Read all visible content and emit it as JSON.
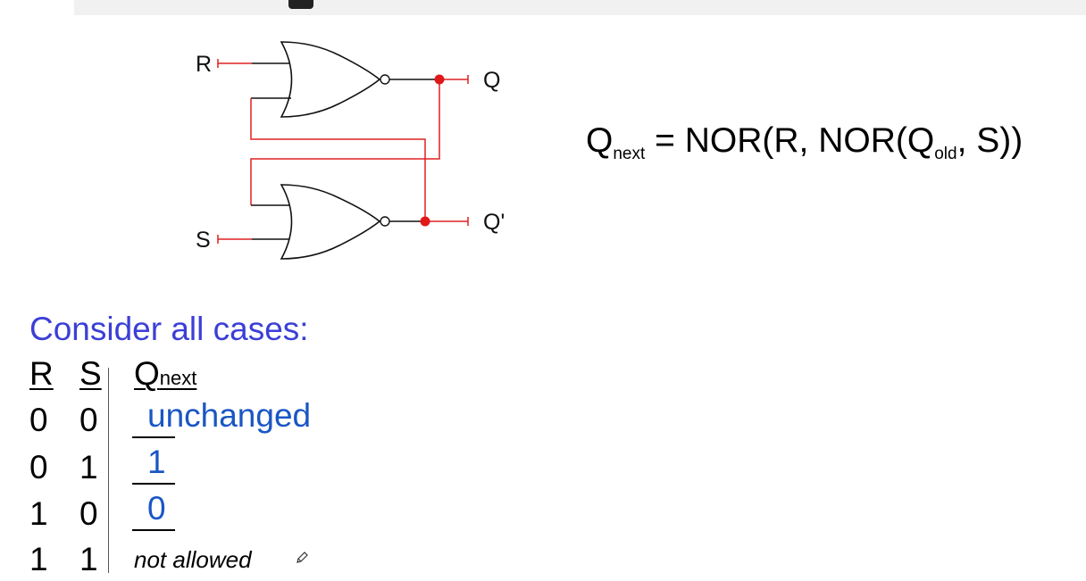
{
  "diagram": {
    "inputs": {
      "r": "R",
      "s": "S"
    },
    "outputs": {
      "q": "Q",
      "q_bar": "Q'"
    },
    "gate_type": "NOR",
    "wire_color": "#e02020",
    "node_color": "#e01818"
  },
  "equation": {
    "q_base": "Q",
    "q_sub": "next",
    "eq_mid": " = NOR(R, NOR(",
    "q_old_base": "Q",
    "q_old_sub": "old",
    "eq_tail": ", S))"
  },
  "consider_label": "Consider all cases:",
  "truth_table": {
    "header": {
      "r": "R",
      "s": "S",
      "q_base": "Q",
      "q_sub": "next"
    },
    "rows": [
      {
        "r": "0",
        "s": "0",
        "q": "unchanged"
      },
      {
        "r": "0",
        "s": "1",
        "q": "1"
      },
      {
        "r": "1",
        "s": "0",
        "q": "0"
      },
      {
        "r": "1",
        "s": "1",
        "q": "not allowed"
      }
    ]
  },
  "colors": {
    "heading": "#3b3fd6",
    "answer": "#1a56c4"
  },
  "icons": {
    "annotation": "pencil-icon"
  }
}
